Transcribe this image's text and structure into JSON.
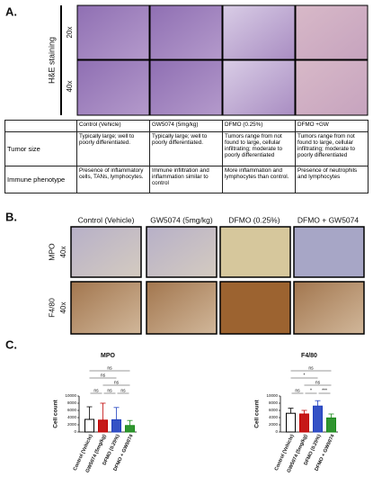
{
  "panels": {
    "a": "A.",
    "b": "B.",
    "c": "C."
  },
  "panel_a": {
    "side_label": "H&E staining",
    "rows": [
      "20x",
      "40x"
    ]
  },
  "table": {
    "headers": [
      "Control (Vehicle)",
      "GW5074 (5mg/kg)",
      "DFMO (0.25%)",
      "DFMO +GW"
    ],
    "rows": [
      [
        "Tumor size",
        "Typically large; well to poorly differentiated.",
        "Typically large; well to poorly differentiated.",
        "Tumors range from not found to large, cellular infiltrating; moderate to poorly differentiated",
        "Tumors range from not found to large, cellular infiltrating; moderate to poorly differentiated"
      ],
      [
        "Immune phenotype",
        "Presence of inflammatory cells, TANs, lymphocytes.",
        "Immune infiltration and inflammation similar to control",
        "More inflammation and lymphocytes than control.",
        "Presence of neutrophils and lymphocytes"
      ]
    ]
  },
  "panel_b": {
    "columns": [
      "Control (Vehicle)",
      "GW5074 (5mg/kg)",
      "DFMO (0.25%)",
      "DFMO + GW5074"
    ],
    "rows": [
      {
        "stain": "MPO",
        "magnification": "40x"
      },
      {
        "stain": "F4/80",
        "magnification": "40x"
      }
    ]
  },
  "chart_data": [
    {
      "type": "bar",
      "title": "MPO",
      "ylabel": "Cell count",
      "categories": [
        "Control (Vehicle)",
        "GW5074 (5mg/kg)",
        "DFMO (0.25%)",
        "DFMO + GW5074"
      ],
      "values": [
        3500,
        3300,
        3400,
        1800
      ],
      "errors": [
        3500,
        4700,
        3400,
        1400
      ],
      "colors": [
        "#000000",
        "#c00000",
        "#1f3fbf",
        "#1a8a1a"
      ],
      "ylim": [
        0,
        10000
      ],
      "yticks": [
        0,
        2000,
        4000,
        6000,
        8000,
        10000
      ],
      "comparisons": [
        {
          "groups": [
            0,
            1
          ],
          "label": "ns"
        },
        {
          "groups": [
            1,
            2
          ],
          "label": "ns"
        },
        {
          "groups": [
            2,
            3
          ],
          "label": "ns"
        },
        {
          "groups": [
            0,
            3
          ],
          "label": "ns"
        },
        {
          "groups": [
            0,
            2
          ],
          "label": "ns"
        },
        {
          "groups": [
            1,
            3
          ],
          "label": "ns"
        }
      ]
    },
    {
      "type": "bar",
      "title": "F4/80",
      "ylabel": "Cell count",
      "categories": [
        "Control (Vehicle)",
        "GW5074 (5mg/kg)",
        "DFMO (0.25%)",
        "DFMO + GW5074"
      ],
      "values": [
        5200,
        5000,
        7200,
        3900
      ],
      "errors": [
        1400,
        1000,
        1500,
        1100
      ],
      "colors": [
        "#000000",
        "#c00000",
        "#1f3fbf",
        "#1a8a1a"
      ],
      "ylim": [
        0,
        10000
      ],
      "yticks": [
        0,
        2000,
        4000,
        6000,
        8000,
        10000
      ],
      "comparisons": [
        {
          "groups": [
            0,
            1
          ],
          "label": "ns"
        },
        {
          "groups": [
            1,
            2
          ],
          "label": "*"
        },
        {
          "groups": [
            2,
            3
          ],
          "label": "***"
        },
        {
          "groups": [
            0,
            3
          ],
          "label": "ns"
        },
        {
          "groups": [
            0,
            2
          ],
          "label": "*"
        },
        {
          "groups": [
            1,
            3
          ],
          "label": "ns"
        }
      ]
    }
  ]
}
